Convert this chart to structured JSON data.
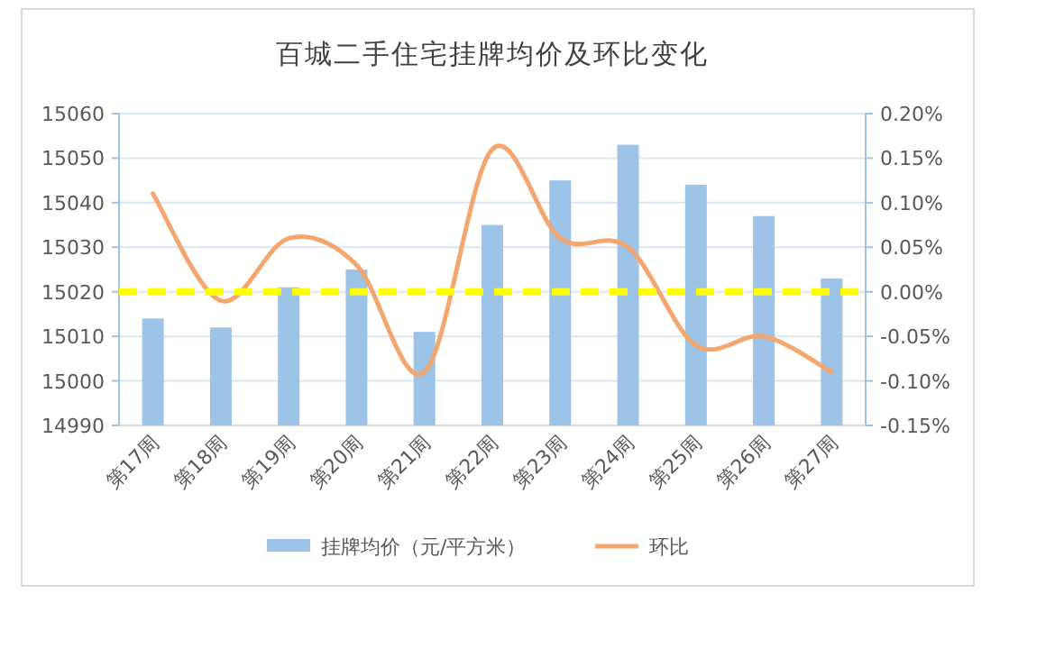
{
  "chart_data": {
    "type": "bar",
    "title": "百城二手住宅挂牌均价及环比变化",
    "categories": [
      "第17周",
      "第18周",
      "第19周",
      "第20周",
      "第21周",
      "第22周",
      "第23周",
      "第24周",
      "第25周",
      "第26周",
      "第27周"
    ],
    "series": [
      {
        "name": "挂牌均价（元/平方米）",
        "type": "bar",
        "color": "#9dc3e6",
        "values": [
          15014,
          15012,
          15021,
          15025,
          15011,
          15035,
          15045,
          15053,
          15044,
          15037,
          15023
        ]
      },
      {
        "name": "环比",
        "type": "line",
        "axis": "y2",
        "color": "#f4a66f",
        "values": [
          0.11,
          -0.01,
          0.06,
          0.03,
          -0.09,
          0.16,
          0.06,
          0.05,
          -0.06,
          -0.05,
          -0.09
        ]
      }
    ],
    "ylim": [
      14990,
      15060
    ],
    "yticks": [
      14990,
      15000,
      15010,
      15020,
      15030,
      15040,
      15050,
      15060
    ],
    "y2lim": [
      -0.15,
      0.2
    ],
    "y2ticks": [
      {
        "value": -0.15,
        "label": "-0.15%"
      },
      {
        "value": -0.1,
        "label": "-0.10%"
      },
      {
        "value": -0.05,
        "label": "-0.05%"
      },
      {
        "value": 0,
        "label": "0.00%"
      },
      {
        "value": 0.05,
        "label": "0.05%"
      },
      {
        "value": 0.1,
        "label": "0.10%"
      },
      {
        "value": 0.15,
        "label": "0.15%"
      },
      {
        "value": 0.2,
        "label": "0.20%"
      }
    ],
    "ref_lines": [
      {
        "axis": "y2",
        "value": 0,
        "color": "#ffff00",
        "line_style": "dashed"
      }
    ],
    "grid": "y",
    "legend": "bottom",
    "marker": "none"
  }
}
